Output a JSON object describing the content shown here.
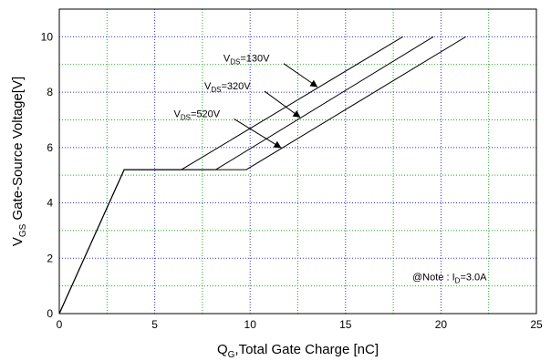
{
  "chart_data": {
    "type": "line",
    "xlabel_main": "Q",
    "xlabel_sub": "G",
    "xlabel_rest": ",Total Gate Charge [nC]",
    "ylabel_main": "V",
    "ylabel_sub": "GS",
    "ylabel_rest": " Gate-Source Voltage[V]",
    "xlim": [
      0,
      25
    ],
    "ylim": [
      0,
      11
    ],
    "xticks": [
      0,
      5,
      10,
      15,
      20,
      25
    ],
    "yticks": [
      0,
      2,
      4,
      6,
      8,
      10
    ],
    "grid": true,
    "series": [
      {
        "name": "VDS=130V",
        "x": [
          0,
          3.4,
          6.4,
          18.0
        ],
        "y": [
          0,
          5.2,
          5.2,
          10.0
        ]
      },
      {
        "name": "VDS=320V",
        "x": [
          0,
          3.4,
          8.2,
          19.6
        ],
        "y": [
          0,
          5.2,
          5.2,
          10.0
        ]
      },
      {
        "name": "VDS=520V",
        "x": [
          0,
          3.4,
          9.8,
          21.3
        ],
        "y": [
          0,
          5.2,
          5.2,
          10.0
        ]
      }
    ],
    "annotations": [
      {
        "main": "V",
        "sub": "DS",
        "rest": "=130V",
        "label_at": [
          8.6,
          9.1
        ],
        "arrow_to": [
          13.5,
          8.2
        ]
      },
      {
        "main": "V",
        "sub": "DS",
        "rest": "=320V",
        "label_at": [
          7.6,
          8.1
        ],
        "arrow_to": [
          12.6,
          7.1
        ]
      },
      {
        "main": "V",
        "sub": "DS",
        "rest": "=520V",
        "label_at": [
          6.0,
          7.1
        ],
        "arrow_to": [
          11.6,
          6.0
        ]
      }
    ],
    "note": {
      "prefix": "@Note : I",
      "sub": "D",
      "rest": "=3.0A",
      "at": [
        18.5,
        1.2
      ]
    }
  }
}
